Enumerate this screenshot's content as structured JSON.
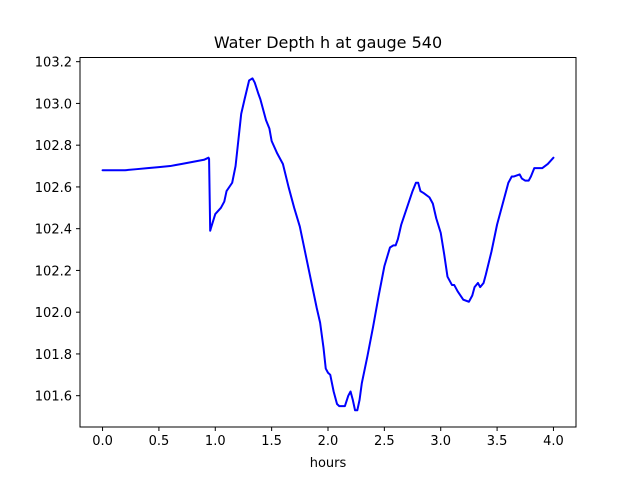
{
  "chart_data": {
    "type": "line",
    "title": "Water Depth h at gauge 540",
    "xlabel": "hours",
    "ylabel": "",
    "xlim": [
      -0.2,
      4.2
    ],
    "ylim": [
      101.45,
      103.22
    ],
    "xticks": [
      0.0,
      0.5,
      1.0,
      1.5,
      2.0,
      2.5,
      3.0,
      3.5,
      4.0
    ],
    "xtick_labels": [
      "0.0",
      "0.5",
      "1.0",
      "1.5",
      "2.0",
      "2.5",
      "3.0",
      "3.5",
      "4.0"
    ],
    "yticks": [
      101.6,
      101.8,
      102.0,
      102.2,
      102.4,
      102.6,
      102.8,
      103.0,
      103.2
    ],
    "ytick_labels": [
      "101.6",
      "101.8",
      "102.0",
      "102.2",
      "102.4",
      "102.6",
      "102.8",
      "103.0",
      "103.2"
    ],
    "grid": false,
    "series": [
      {
        "color": "#0000ff",
        "x": [
          0.0,
          0.1,
          0.2,
          0.3,
          0.4,
          0.5,
          0.6,
          0.65,
          0.7,
          0.8,
          0.9,
          0.94,
          0.945,
          0.955,
          0.96,
          1.0,
          1.05,
          1.08,
          1.1,
          1.15,
          1.18,
          1.2,
          1.23,
          1.26,
          1.3,
          1.33,
          1.35,
          1.38,
          1.4,
          1.45,
          1.48,
          1.5,
          1.55,
          1.6,
          1.65,
          1.7,
          1.75,
          1.8,
          1.85,
          1.9,
          1.93,
          1.96,
          1.98,
          2.0,
          2.02,
          2.05,
          2.08,
          2.1,
          2.12,
          2.15,
          2.18,
          2.2,
          2.22,
          2.24,
          2.26,
          2.28,
          2.3,
          2.35,
          2.4,
          2.45,
          2.5,
          2.55,
          2.58,
          2.6,
          2.62,
          2.65,
          2.7,
          2.75,
          2.78,
          2.8,
          2.82,
          2.85,
          2.9,
          2.93,
          2.96,
          3.0,
          3.03,
          3.06,
          3.1,
          3.12,
          3.15,
          3.2,
          3.25,
          3.28,
          3.3,
          3.33,
          3.35,
          3.38,
          3.4,
          3.45,
          3.5,
          3.55,
          3.6,
          3.63,
          3.65,
          3.7,
          3.72,
          3.75,
          3.78,
          3.8,
          3.83,
          3.85,
          3.9,
          3.95,
          4.0
        ],
        "y": [
          102.68,
          102.68,
          102.68,
          102.685,
          102.69,
          102.695,
          102.7,
          102.705,
          102.71,
          102.72,
          102.73,
          102.74,
          102.735,
          102.39,
          102.4,
          102.47,
          102.5,
          102.53,
          102.58,
          102.62,
          102.7,
          102.8,
          102.95,
          103.02,
          103.11,
          103.12,
          103.1,
          103.05,
          103.02,
          102.92,
          102.88,
          102.82,
          102.76,
          102.71,
          102.6,
          102.5,
          102.41,
          102.28,
          102.15,
          102.02,
          101.95,
          101.83,
          101.73,
          101.71,
          101.7,
          101.62,
          101.56,
          101.55,
          101.55,
          101.55,
          101.6,
          101.62,
          101.58,
          101.53,
          101.53,
          101.58,
          101.66,
          101.79,
          101.93,
          102.08,
          102.22,
          102.31,
          102.32,
          102.32,
          102.35,
          102.42,
          102.5,
          102.58,
          102.62,
          102.62,
          102.58,
          102.57,
          102.55,
          102.52,
          102.45,
          102.38,
          102.28,
          102.17,
          102.13,
          102.13,
          102.1,
          102.06,
          102.05,
          102.08,
          102.12,
          102.14,
          102.12,
          102.14,
          102.18,
          102.29,
          102.42,
          102.52,
          102.62,
          102.65,
          102.65,
          102.66,
          102.64,
          102.63,
          102.63,
          102.65,
          102.69,
          102.69,
          102.69,
          102.71,
          102.74
        ]
      }
    ]
  }
}
